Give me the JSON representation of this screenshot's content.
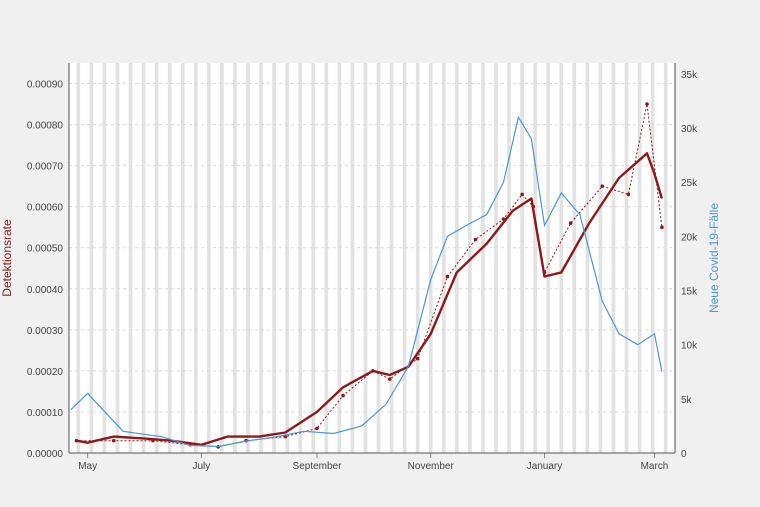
{
  "colors": {
    "page_bg": "#f0f0f0",
    "plot_bg": "#ffffff",
    "weekend_band": "#e2e2e2",
    "detection_rate": "#8b1a1a",
    "new_cases": "#4a98d8",
    "gridline": "#dcdcdc",
    "axis_text": "#444444"
  },
  "chart_data": {
    "type": "line",
    "x_axis": {
      "type": "date",
      "range": [
        "2020-04-21",
        "2021-03-12"
      ],
      "tick_dates": [
        "2020-05-01",
        "2020-07-01",
        "2020-09-01",
        "2020-11-01",
        "2021-01-01",
        "2021-03-01"
      ],
      "tick_labels": [
        "May",
        "July",
        "September",
        "November",
        "January",
        "March"
      ]
    },
    "y_left": {
      "label": "Detektionsrate",
      "range": [
        0,
        0.00095
      ],
      "ticks": [
        0,
        0.0001,
        0.0002,
        0.0003,
        0.0004,
        0.0005,
        0.0006,
        0.0007,
        0.0008,
        0.0009
      ],
      "tick_labels": [
        "0.00000",
        "0.00010",
        "0.00020",
        "0.00030",
        "0.00040",
        "0.00050",
        "0.00060",
        "0.00070",
        "0.00080",
        "0.00090"
      ]
    },
    "y_right": {
      "label": "Neue Covid-19-Fälle",
      "range": [
        0,
        36000
      ],
      "ticks": [
        0,
        5000,
        10000,
        15000,
        20000,
        25000,
        30000,
        35000
      ],
      "tick_labels": [
        "0",
        "5k",
        "10k",
        "15k",
        "20k",
        "25k",
        "30k",
        "35k"
      ]
    },
    "weekend_shading": true,
    "series": [
      {
        "role": "detection_rate_daily",
        "axis": "left",
        "style": "dotted line with markers",
        "x": [
          "2020-04-25",
          "2020-05-15",
          "2020-06-05",
          "2020-06-25",
          "2020-07-10",
          "2020-07-25",
          "2020-08-15",
          "2020-09-01",
          "2020-09-15",
          "2020-10-01",
          "2020-10-10",
          "2020-10-25",
          "2020-11-10",
          "2020-11-25",
          "2020-12-10",
          "2020-12-20",
          "2020-12-26",
          "2021-01-01",
          "2021-01-15",
          "2021-02-01",
          "2021-02-15",
          "2021-02-25",
          "2021-03-05"
        ],
        "y": [
          3e-05,
          3e-05,
          3e-05,
          2e-05,
          1.5e-05,
          3e-05,
          4e-05,
          6e-05,
          0.00014,
          0.0002,
          0.00018,
          0.00023,
          0.00043,
          0.00052,
          0.00057,
          0.00063,
          0.0006,
          0.00044,
          0.00056,
          0.00065,
          0.00063,
          0.00085,
          0.00055
        ]
      },
      {
        "role": "detection_rate_smoothed",
        "axis": "left",
        "style": "thick solid line",
        "x": [
          "2020-04-25",
          "2020-05-01",
          "2020-05-15",
          "2020-06-01",
          "2020-06-15",
          "2020-07-01",
          "2020-07-15",
          "2020-08-01",
          "2020-08-15",
          "2020-09-01",
          "2020-09-15",
          "2020-10-01",
          "2020-10-10",
          "2020-10-20",
          "2020-11-01",
          "2020-11-15",
          "2020-12-01",
          "2020-12-15",
          "2020-12-25",
          "2021-01-01",
          "2021-01-10",
          "2021-01-25",
          "2021-02-10",
          "2021-02-25",
          "2021-03-01",
          "2021-03-05"
        ],
        "y": [
          3e-05,
          2.5e-05,
          4e-05,
          3.5e-05,
          3e-05,
          2e-05,
          4e-05,
          4e-05,
          5e-05,
          0.0001,
          0.00016,
          0.0002,
          0.00019,
          0.00021,
          0.00029,
          0.00044,
          0.00051,
          0.00059,
          0.00062,
          0.00043,
          0.00044,
          0.00056,
          0.00067,
          0.00073,
          0.00068,
          0.00062
        ]
      },
      {
        "role": "new_cases_daily",
        "axis": "right",
        "style": "thin solid line",
        "x": [
          "2020-04-22",
          "2020-05-01",
          "2020-05-20",
          "2020-06-10",
          "2020-06-25",
          "2020-07-10",
          "2020-07-25",
          "2020-08-10",
          "2020-08-25",
          "2020-09-10",
          "2020-09-25",
          "2020-10-08",
          "2020-10-20",
          "2020-11-01",
          "2020-11-10",
          "2020-11-20",
          "2020-12-01",
          "2020-12-10",
          "2020-12-18",
          "2020-12-25",
          "2021-01-01",
          "2021-01-10",
          "2021-01-20",
          "2021-02-01",
          "2021-02-10",
          "2021-02-20",
          "2021-03-01",
          "2021-03-05"
        ],
        "y": [
          4000,
          5500,
          2000,
          1500,
          700,
          600,
          1100,
          1500,
          2000,
          1800,
          2500,
          4500,
          8000,
          16000,
          20000,
          21000,
          22000,
          25000,
          31000,
          29000,
          21000,
          24000,
          22000,
          14000,
          11000,
          10000,
          11000,
          7500
        ]
      }
    ]
  }
}
